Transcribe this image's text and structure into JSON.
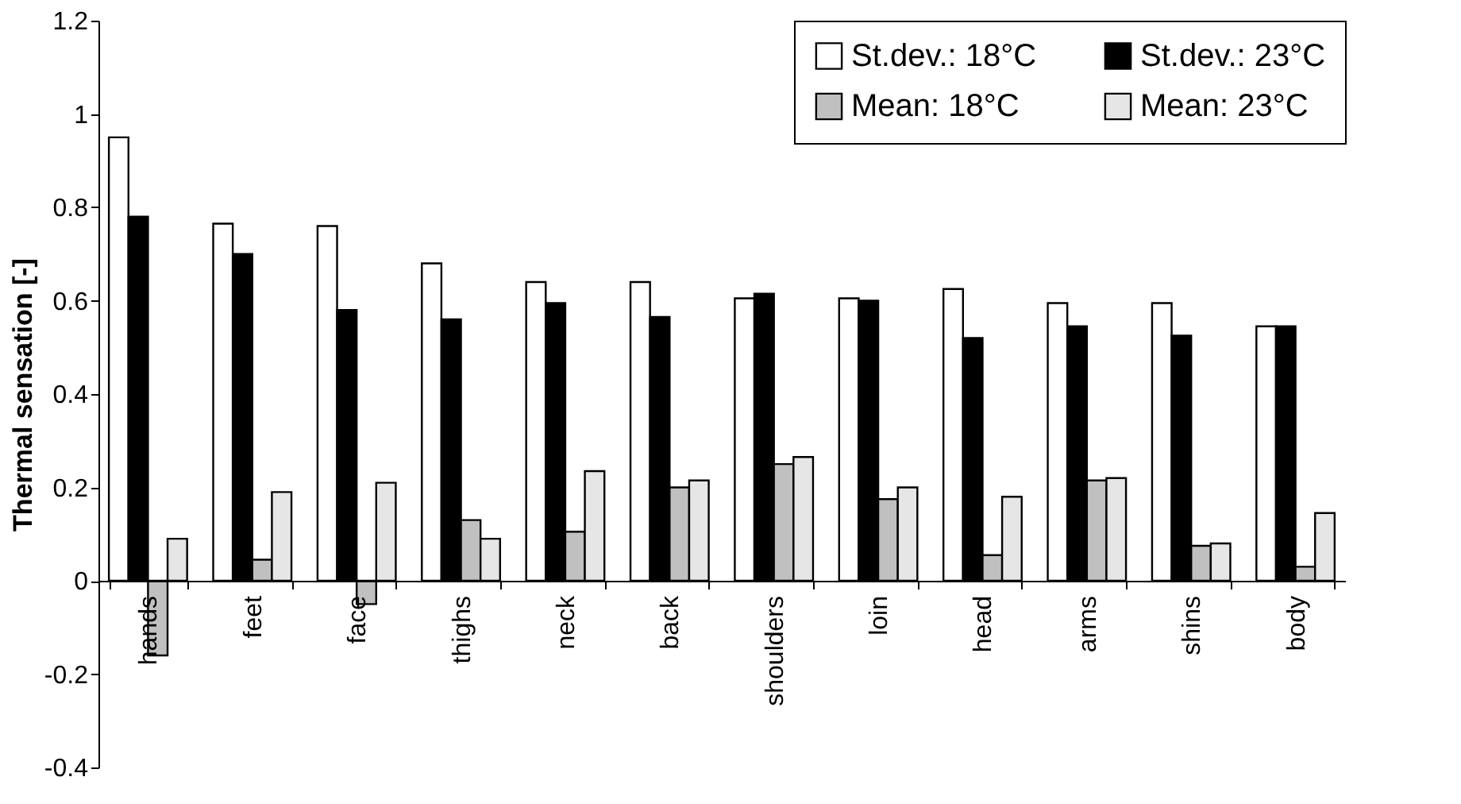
{
  "chart_data": {
    "type": "bar",
    "ylabel": "Thermal sensation [-]",
    "categories": [
      "hands",
      "feet",
      "face",
      "thighs",
      "neck",
      "back",
      "shoulders",
      "loin",
      "head",
      "arms",
      "shins",
      "body"
    ],
    "series": [
      {
        "name": "St.dev.: 18°C",
        "color": "#ffffff",
        "values": [
          0.95,
          0.765,
          0.76,
          0.68,
          0.64,
          0.64,
          0.605,
          0.605,
          0.625,
          0.595,
          0.595,
          0.545
        ]
      },
      {
        "name": "St.dev.: 23°C",
        "color": "#000000",
        "values": [
          0.78,
          0.7,
          0.58,
          0.56,
          0.595,
          0.565,
          0.615,
          0.6,
          0.52,
          0.545,
          0.525,
          0.545
        ]
      },
      {
        "name": "Mean: 18°C",
        "color": "#c0c0c0",
        "values": [
          -0.16,
          0.045,
          -0.05,
          0.13,
          0.105,
          0.2,
          0.25,
          0.175,
          0.055,
          0.215,
          0.075,
          0.03
        ]
      },
      {
        "name": "Mean: 23°C",
        "color": "#e6e6e6",
        "values": [
          0.09,
          0.19,
          0.21,
          0.09,
          0.235,
          0.215,
          0.265,
          0.2,
          0.18,
          0.22,
          0.08,
          0.145
        ]
      }
    ],
    "ylim": [
      -0.4,
      1.2
    ],
    "yticks": [
      -0.4,
      -0.2,
      0,
      0.2,
      0.4,
      0.6,
      0.8,
      1,
      1.2
    ],
    "grid": false,
    "legend": "top right"
  }
}
